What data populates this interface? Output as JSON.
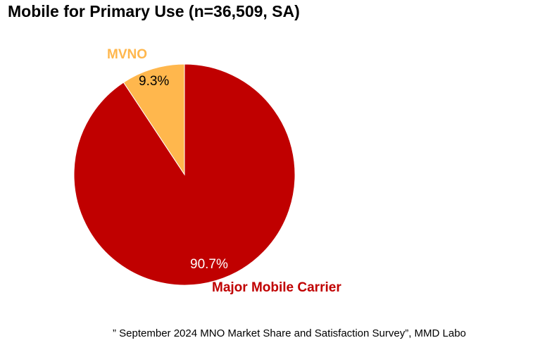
{
  "title": "Mobile for Primary Use (n=36,509, SA)",
  "source": "” September 2024 MNO Market Share and Satisfaction Survey”, MMD Labo",
  "chart_data": {
    "type": "pie",
    "title": "Mobile for Primary Use (n=36,509, SA)",
    "slices": [
      {
        "label": "MVNO",
        "value": 9.3,
        "value_label": "9.3%",
        "color": "#ffb74d"
      },
      {
        "label": "Major Mobile Carrier",
        "value": 90.7,
        "value_label": "90.7%",
        "color": "#c00000"
      }
    ],
    "legend": "none"
  }
}
